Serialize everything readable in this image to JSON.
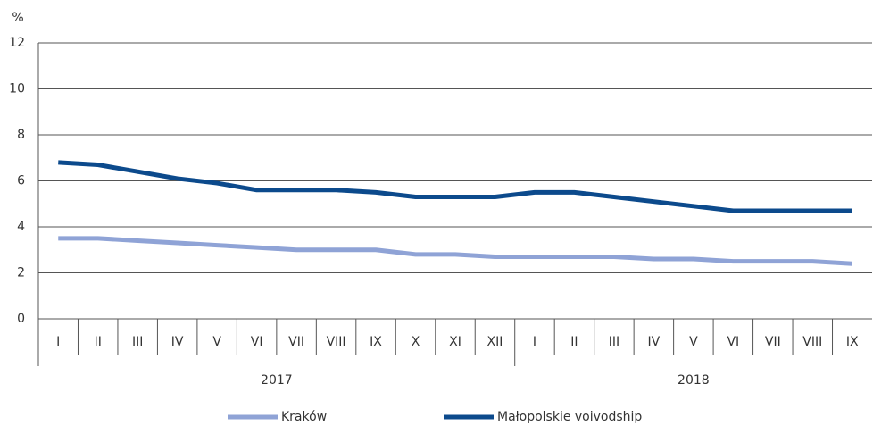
{
  "chart_data": {
    "type": "line",
    "y_axis_label": "%",
    "categories": [
      "I",
      "II",
      "III",
      "IV",
      "V",
      "VI",
      "VII",
      "VIII",
      "IX",
      "X",
      "XI",
      "XII",
      "I",
      "II",
      "III",
      "IV",
      "V",
      "VI",
      "VII",
      "VIII",
      "IX"
    ],
    "x_groups": [
      "2017",
      "2018"
    ],
    "series": [
      {
        "name": "Kraków",
        "color": "#8fa3d6",
        "values": [
          3.5,
          3.5,
          3.4,
          3.3,
          3.2,
          3.1,
          3.0,
          3.0,
          3.0,
          2.8,
          2.8,
          2.7,
          2.7,
          2.7,
          2.7,
          2.6,
          2.6,
          2.5,
          2.5,
          2.5,
          2.4
        ]
      },
      {
        "name": "Małopolskie voivodship",
        "color": "#0c4a8c",
        "values": [
          6.8,
          6.7,
          6.4,
          6.1,
          5.9,
          5.6,
          5.6,
          5.6,
          5.5,
          5.3,
          5.3,
          5.3,
          5.5,
          5.5,
          5.3,
          5.1,
          4.9,
          4.7,
          4.7,
          4.7,
          4.7
        ]
      }
    ],
    "ylim": [
      0,
      12
    ],
    "yticks": [
      0,
      2,
      4,
      6,
      8,
      10,
      12
    ],
    "grid": true,
    "legend": "bottom"
  }
}
